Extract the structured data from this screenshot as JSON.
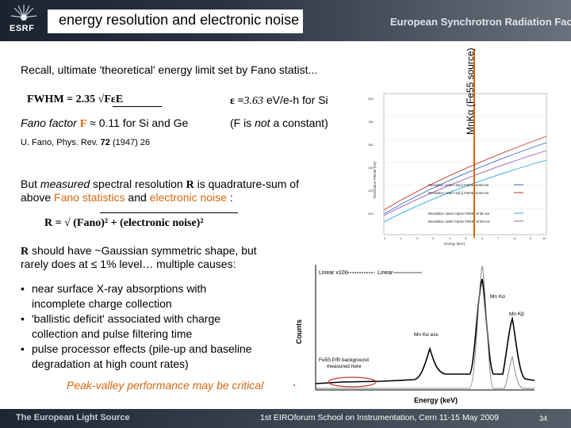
{
  "header": {
    "title": "energy resolution and electronic noise",
    "logo_text": "ESRF",
    "org_name": "European Synchrotron Radiation Facility"
  },
  "footer": {
    "left": "The European Light Source",
    "center": "1st EIROforum School on Instrumentation, Cern 11-15 May 2009",
    "page": "34"
  },
  "body": {
    "recall": "Recall, ultimate 'theoretical' energy limit set by Fano statist...",
    "fwhm_formula": "FWHM = 2.35 √FεE",
    "epsilon_prefix": "ε =",
    "epsilon_value": "3.63",
    "epsilon_unit": " eV/e-h for Si",
    "fano_label": "Fano factor ",
    "fano_symbol": "F",
    "fano_value": " ≈ 0.11 for Si and Ge",
    "f_paren_open": "(F is ",
    "f_not": "not",
    "f_paren_close": " a constant)",
    "reference_prefix": "U. Fano, Phys. Rev. ",
    "reference_volume": "72",
    "reference_suffix": " (1947) 26",
    "measured_1a": "But ",
    "measured_1b": "measured",
    "measured_1c": " spectral resolution ",
    "measured_1d": "R",
    "measured_1e": " is quadrature-sum of",
    "measured_2a": "above ",
    "measured_2b": "Fano statistics",
    "measured_2c": " and ",
    "measured_2d": "electronic noise",
    "measured_2e": " :",
    "r_formula": "R = √ (Fano)² + (electronic noise)²",
    "gauss_1a": "R",
    "gauss_1b": " should have ~Gaussian symmetric shape, but",
    "gauss_2": "rarely does at ≤ 1% level… multiple causes:",
    "bullets": [
      "near surface X-ray absorptions with",
      "incomplete charge collection",
      "'ballistic deficit' associated with charge",
      "collection and pulse filtering time",
      "pulse processor effects (pile-up and baseline",
      "degradation at high count rates)"
    ],
    "peak_valley": "Peak-valley performance may be critical"
  },
  "graph": {
    "vertical_label": "MnKα (Fe55 source)",
    "y_axis_label": "Resolution FWHM (eV)",
    "x_axis_label": "Energy (keV)",
    "y_ticks": [
      "200",
      "180",
      "160",
      "140",
      "120",
      "100"
    ],
    "x_ticks": [
      "0",
      "1",
      "2",
      "3",
      "4",
      "5",
      "6",
      "7",
      "8",
      "9",
      "10"
    ],
    "legend": [
      {
        "label": "Resolution 129eV Si(Li) FWHM at Mn Kα",
        "color": "#3a6fc4"
      },
      {
        "label": "Resolution 133eV Si(Li) FWHM at Mn Kα",
        "color": "#c0392b"
      },
      {
        "label": "Resolution 115eV HpGe FWHM at Mn Kα",
        "color": "#2aa5d8"
      },
      {
        "label": "Resolution 125eV HpGe FWHM at Mn Kα",
        "color": "#9b59b6"
      }
    ]
  },
  "spectrum": {
    "y_label": "Counts",
    "x_label": "Energy (keV)",
    "legend_linear100": "Linear x100",
    "legend_linear": "Linear",
    "mn_ka": "Mn Kα",
    "mn_kb": "Mn Kβ",
    "mn_ka_esc": "Mn Kα esc",
    "pb_note_1": "Fe55 P/B background",
    "pb_note_2": "measured here",
    "ellipse_color": "#c0392b"
  }
}
